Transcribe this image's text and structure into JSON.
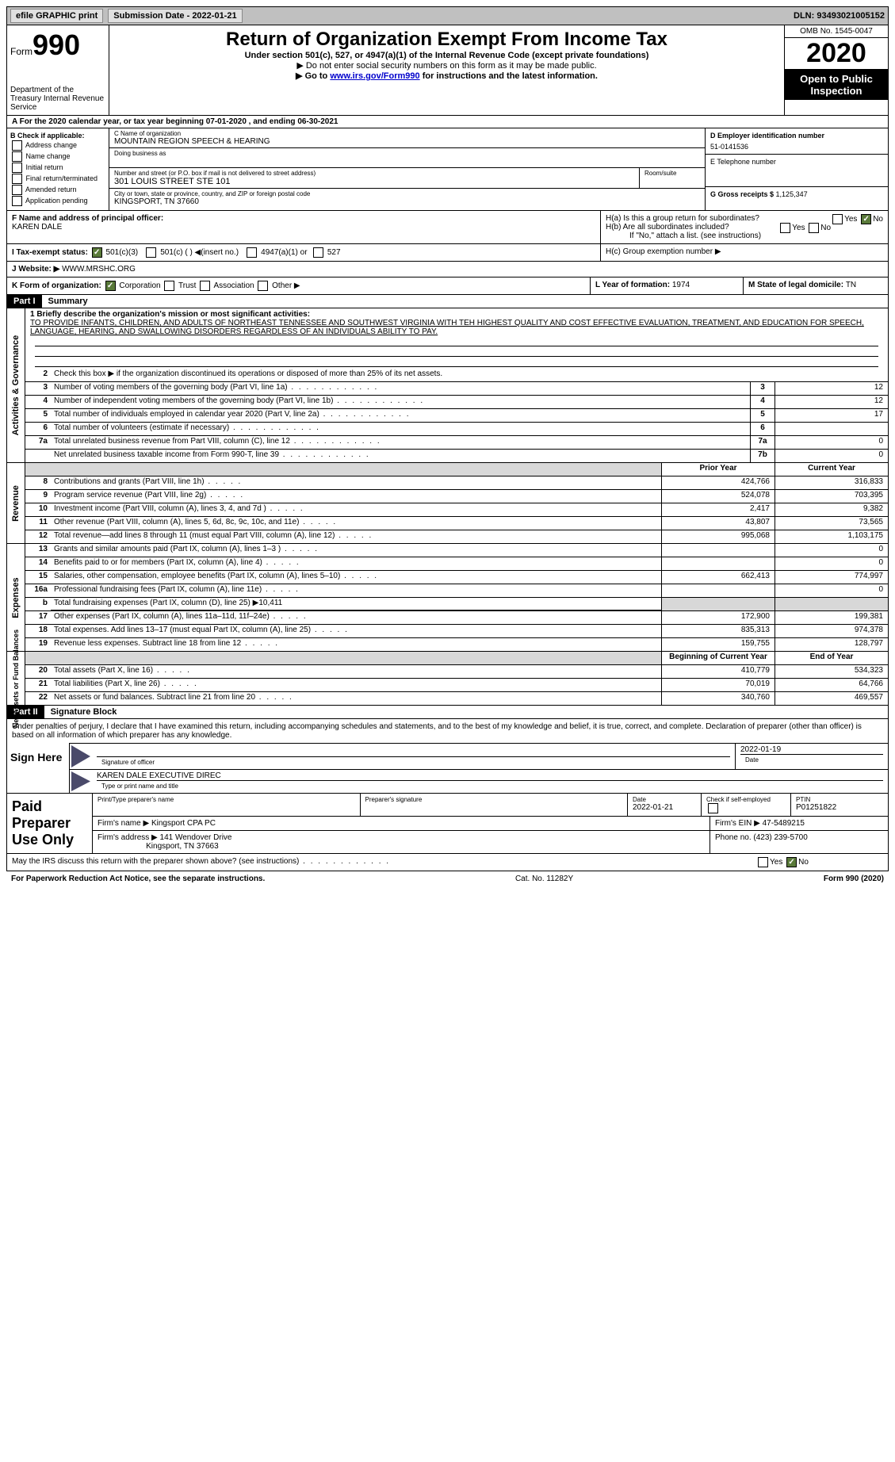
{
  "topbar": {
    "efile": "efile GRAPHIC print",
    "submission": "Submission Date - 2022-01-21",
    "dln": "DLN: 93493021005152"
  },
  "header": {
    "form_label": "Form",
    "form_num": "990",
    "dept": "Department of the Treasury\nInternal Revenue Service",
    "title": "Return of Organization Exempt From Income Tax",
    "sub": "Under section 501(c), 527, or 4947(a)(1) of the Internal Revenue Code (except private foundations)",
    "note1": "▶ Do not enter social security numbers on this form as it may be made public.",
    "note2_pre": "▶ Go to ",
    "note2_link": "www.irs.gov/Form990",
    "note2_post": " for instructions and the latest information.",
    "omb": "OMB No. 1545-0047",
    "year": "2020",
    "inspection": "Open to Public Inspection"
  },
  "period": "A  For the 2020 calendar year, or tax year beginning 07-01-2020     , and ending 06-30-2021",
  "B": {
    "hdr": "B Check if applicable:",
    "opts": [
      "Address change",
      "Name change",
      "Initial return",
      "Final return/terminated",
      "Amended return",
      "Application pending"
    ]
  },
  "C": {
    "name_lbl": "C Name of organization",
    "name": "MOUNTAIN REGION SPEECH & HEARING",
    "dba_lbl": "Doing business as",
    "addr_lbl": "Number and street (or P.O. box if mail is not delivered to street address)",
    "room_lbl": "Room/suite",
    "addr": "301 LOUIS STREET STE 101",
    "city_lbl": "City or town, state or province, country, and ZIP or foreign postal code",
    "city": "KINGSPORT, TN  37660"
  },
  "DE": {
    "d_lbl": "D Employer identification number",
    "d_val": "51-0141536",
    "e_lbl": "E Telephone number",
    "g_lbl": "G Gross receipts $ ",
    "g_val": "1,125,347"
  },
  "F": {
    "lbl": "F  Name and address of principal officer:",
    "name": "KAREN DALE"
  },
  "H": {
    "a": "H(a)  Is this a group return for subordinates?",
    "b": "H(b)  Are all subordinates included?",
    "b_note": "If \"No,\" attach a list. (see instructions)",
    "c": "H(c)  Group exemption number ▶",
    "yes": "Yes",
    "no": "No"
  },
  "I": {
    "lbl": "I   Tax-exempt status:",
    "o1": "501(c)(3)",
    "o2": "501(c) (  ) ◀(insert no.)",
    "o3": "4947(a)(1) or",
    "o4": "527"
  },
  "J": {
    "lbl": "J   Website: ▶",
    "val": "WWW.MRSHC.ORG"
  },
  "K": {
    "lbl": "K Form of organization:",
    "o1": "Corporation",
    "o2": "Trust",
    "o3": "Association",
    "o4": "Other ▶"
  },
  "L": {
    "lbl": "L Year of formation: ",
    "val": "1974"
  },
  "M": {
    "lbl": "M State of legal domicile: ",
    "val": "TN"
  },
  "part1": {
    "hdr": "Part I",
    "title": "Summary"
  },
  "summary": {
    "l1_lbl": "1  Briefly describe the organization's mission or most significant activities:",
    "mission": "TO PROVIDE INFANTS, CHILDREN, AND ADULTS OF NORTHEAST TENNESSEE AND SOUTHWEST VIRGINIA WITH TEH HIGHEST QUALITY AND COST EFFECTIVE EVALUATION, TREATMENT, AND EDUCATION FOR SPEECH, LANGUAGE, HEARING, AND SWALLOWING DISORDERS REGARDLESS OF AN INDIVIDUALS ABILITY TO PAY.",
    "l2": "Check this box ▶      if the organization discontinued its operations or disposed of more than 25% of its net assets.",
    "rows": [
      {
        "n": "3",
        "d": "Number of voting members of the governing body (Part VI, line 1a)",
        "b": "3",
        "v": "12"
      },
      {
        "n": "4",
        "d": "Number of independent voting members of the governing body (Part VI, line 1b)",
        "b": "4",
        "v": "12"
      },
      {
        "n": "5",
        "d": "Total number of individuals employed in calendar year 2020 (Part V, line 2a)",
        "b": "5",
        "v": "17"
      },
      {
        "n": "6",
        "d": "Total number of volunteers (estimate if necessary)",
        "b": "6",
        "v": ""
      },
      {
        "n": "7a",
        "d": "Total unrelated business revenue from Part VIII, column (C), line 12",
        "b": "7a",
        "v": "0"
      },
      {
        "n": "",
        "d": "Net unrelated business taxable income from Form 990-T, line 39",
        "b": "7b",
        "v": "0"
      }
    ]
  },
  "revenue": {
    "side": "Revenue",
    "hdr_prior": "Prior Year",
    "hdr_curr": "Current Year",
    "rows": [
      {
        "n": "8",
        "d": "Contributions and grants (Part VIII, line 1h)",
        "p": "424,766",
        "c": "316,833"
      },
      {
        "n": "9",
        "d": "Program service revenue (Part VIII, line 2g)",
        "p": "524,078",
        "c": "703,395"
      },
      {
        "n": "10",
        "d": "Investment income (Part VIII, column (A), lines 3, 4, and 7d )",
        "p": "2,417",
        "c": "9,382"
      },
      {
        "n": "11",
        "d": "Other revenue (Part VIII, column (A), lines 5, 6d, 8c, 9c, 10c, and 11e)",
        "p": "43,807",
        "c": "73,565"
      },
      {
        "n": "12",
        "d": "Total revenue—add lines 8 through 11 (must equal Part VIII, column (A), line 12)",
        "p": "995,068",
        "c": "1,103,175"
      }
    ]
  },
  "expenses": {
    "side": "Expenses",
    "rows": [
      {
        "n": "13",
        "d": "Grants and similar amounts paid (Part IX, column (A), lines 1–3 )",
        "p": "",
        "c": "0"
      },
      {
        "n": "14",
        "d": "Benefits paid to or for members (Part IX, column (A), line 4)",
        "p": "",
        "c": "0"
      },
      {
        "n": "15",
        "d": "Salaries, other compensation, employee benefits (Part IX, column (A), lines 5–10)",
        "p": "662,413",
        "c": "774,997"
      },
      {
        "n": "16a",
        "d": "Professional fundraising fees (Part IX, column (A), line 11e)",
        "p": "",
        "c": "0"
      },
      {
        "n": "b",
        "d": "Total fundraising expenses (Part IX, column (D), line 25) ▶10,411",
        "p": null,
        "c": null
      },
      {
        "n": "17",
        "d": "Other expenses (Part IX, column (A), lines 11a–11d, 11f–24e)",
        "p": "172,900",
        "c": "199,381"
      },
      {
        "n": "18",
        "d": "Total expenses. Add lines 13–17 (must equal Part IX, column (A), line 25)",
        "p": "835,313",
        "c": "974,378"
      },
      {
        "n": "19",
        "d": "Revenue less expenses. Subtract line 18 from line 12",
        "p": "159,755",
        "c": "128,797"
      }
    ]
  },
  "netassets": {
    "side": "Net Assets or Fund Balances",
    "hdr_prior": "Beginning of Current Year",
    "hdr_curr": "End of Year",
    "rows": [
      {
        "n": "20",
        "d": "Total assets (Part X, line 16)",
        "p": "410,779",
        "c": "534,323"
      },
      {
        "n": "21",
        "d": "Total liabilities (Part X, line 26)",
        "p": "70,019",
        "c": "64,766"
      },
      {
        "n": "22",
        "d": "Net assets or fund balances. Subtract line 21 from line 20",
        "p": "340,760",
        "c": "469,557"
      }
    ]
  },
  "part2": {
    "hdr": "Part II",
    "title": "Signature Block"
  },
  "sig": {
    "decl": "Under penalties of perjury, I declare that I have examined this return, including accompanying schedules and statements, and to the best of my knowledge and belief, it is true, correct, and complete. Declaration of preparer (other than officer) is based on all information of which preparer has any knowledge.",
    "here": "Sign Here",
    "sig_officer": "Signature of officer",
    "date_lbl": "Date",
    "date_val": "2022-01-19",
    "name_val": "KAREN DALE EXECUTIVE DIREC",
    "name_lbl": "Type or print name and title"
  },
  "paid": {
    "lbl": "Paid Preparer Use Only",
    "r1": {
      "c1": "Print/Type preparer's name",
      "c2": "Preparer's signature",
      "c3_lbl": "Date",
      "c3": "2022-01-21",
      "c4_lbl": "Check       if self-employed",
      "c5_lbl": "PTIN",
      "c5": "P01251822"
    },
    "r2": {
      "c1_lbl": "Firm's name     ▶",
      "c1": "Kingsport CPA PC",
      "c2_lbl": "Firm's EIN ▶",
      "c2": "47-5489215"
    },
    "r3": {
      "c1_lbl": "Firm's address ▶",
      "c1a": "141 Wendover Drive",
      "c1b": "Kingsport, TN  37663",
      "c2_lbl": "Phone no. ",
      "c2": "(423) 239-5700"
    }
  },
  "may_irs": "May the IRS discuss this return with the preparer shown above? (see instructions)",
  "footer": {
    "left": "For Paperwork Reduction Act Notice, see the separate instructions.",
    "mid": "Cat. No. 11282Y",
    "right": "Form 990 (2020)"
  },
  "side_ag": "Activities & Governance"
}
